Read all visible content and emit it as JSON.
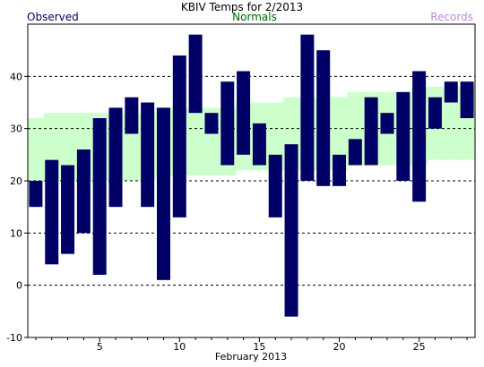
{
  "chart_data": {
    "type": "bar",
    "title": "KBIV Temps for 2/2013",
    "xlabel": "February 2013",
    "ylabel": "",
    "legend": {
      "placement": "top",
      "entries": [
        {
          "name": "Observed",
          "color": "#000066"
        },
        {
          "name": "Normals",
          "color": "#006600"
        },
        {
          "name": "Records",
          "color": "#bb88dd"
        }
      ]
    },
    "xlim": [
      0.5,
      28.5
    ],
    "ylim": [
      -10,
      50
    ],
    "x_ticks": [
      5,
      10,
      15,
      20,
      25
    ],
    "y_ticks": [
      -10,
      0,
      10,
      20,
      30,
      40
    ],
    "grid": {
      "horizontal_dashed": true,
      "lines_at": [
        0,
        10,
        20,
        30,
        40
      ]
    },
    "colors": {
      "observed_bar": "#000066",
      "normals_band": "#ccffcc",
      "grid_line": "#000000",
      "background": "#ffffff"
    },
    "series": [
      {
        "name": "Observed",
        "kind": "floating-bar",
        "days": [
          1,
          2,
          3,
          4,
          5,
          6,
          7,
          8,
          9,
          10,
          11,
          12,
          13,
          14,
          15,
          16,
          17,
          18,
          19,
          20,
          21,
          22,
          23,
          24,
          25,
          26,
          27,
          28
        ],
        "low": [
          15,
          4,
          6,
          10,
          2,
          15,
          29,
          15,
          1,
          13,
          33,
          29,
          23,
          25,
          23,
          13,
          -6,
          20,
          19,
          19,
          23,
          23,
          29,
          20,
          16,
          30,
          35,
          32
        ],
        "high": [
          20,
          24,
          23,
          26,
          32,
          34,
          36,
          35,
          34,
          44,
          48,
          33,
          39,
          41,
          31,
          25,
          27,
          48,
          45,
          25,
          28,
          36,
          33,
          37,
          41,
          36,
          39,
          39
        ]
      },
      {
        "name": "Normals",
        "kind": "band",
        "days": [
          1,
          2,
          3,
          4,
          5,
          6,
          7,
          8,
          9,
          10,
          11,
          12,
          13,
          14,
          15,
          16,
          17,
          18,
          19,
          20,
          21,
          22,
          23,
          24,
          25,
          26,
          27,
          28
        ],
        "low": [
          20,
          20,
          20,
          20,
          20,
          20,
          20,
          20,
          21,
          21,
          21,
          21,
          21,
          22,
          22,
          22,
          22,
          22,
          22,
          22,
          23,
          23,
          23,
          23,
          23,
          24,
          24,
          24
        ],
        "high": [
          32,
          33,
          33,
          33,
          33,
          33,
          33,
          33,
          34,
          34,
          34,
          34,
          34,
          35,
          35,
          35,
          36,
          36,
          36,
          36,
          37,
          37,
          37,
          37,
          38,
          38,
          38,
          38
        ]
      }
    ]
  }
}
